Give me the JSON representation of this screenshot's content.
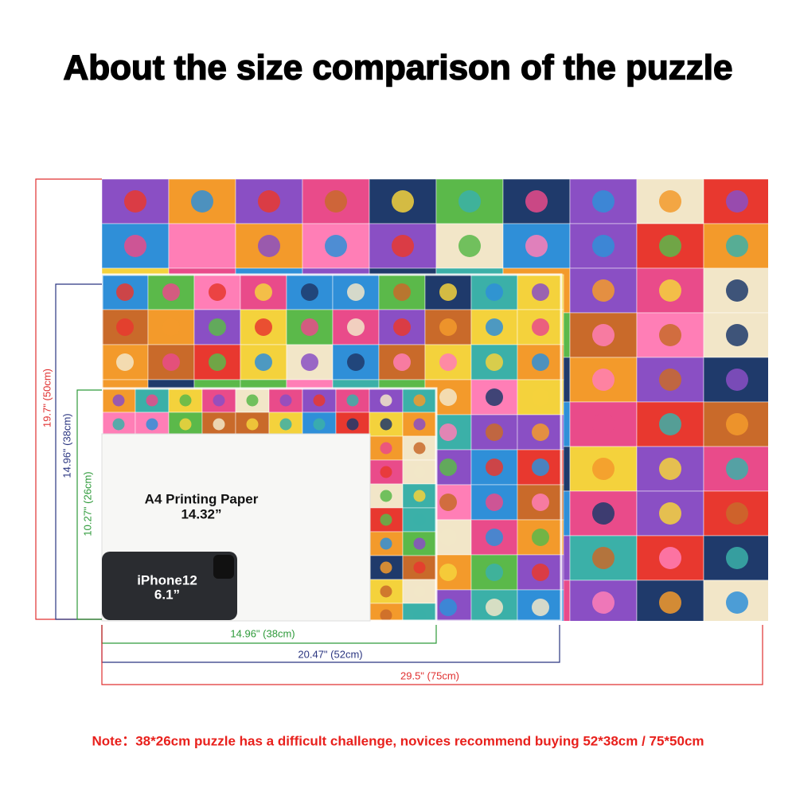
{
  "title": "About the size comparison of the puzzle",
  "height_labels": [
    "19.7\" (50cm)",
    "14.96\" (38cm)",
    "10.27\" (26cm)"
  ],
  "width_labels": [
    "14.96\" (38cm)",
    "20.47\" (52cm)",
    "29.5\" (75cm)"
  ],
  "paper": {
    "label": "A4 Printing Paper",
    "size": "14.32”"
  },
  "phone": {
    "label": "iPhone12",
    "size": "6.1”"
  },
  "note": "Note：38*26cm puzzle has a difficult challenge, novices recommend buying 52*38cm / 75*50cm"
}
